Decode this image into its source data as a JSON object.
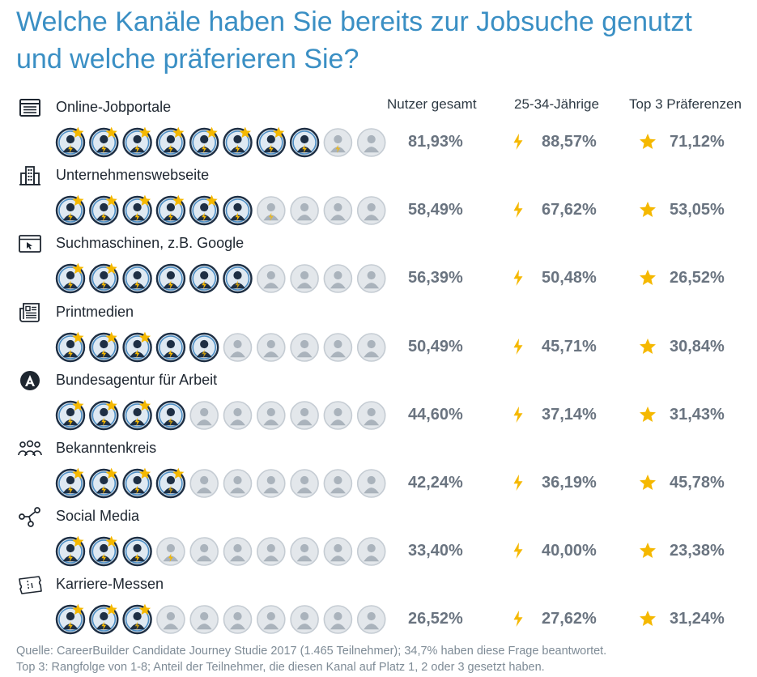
{
  "title": "Welche Kanäle haben Sie bereits zur Jobsuche genutzt und welche präferieren Sie?",
  "columns": {
    "total": "Nutzer gesamt",
    "age": "25-34-Jährige",
    "top3": "Top 3 Präferenzen"
  },
  "colors": {
    "title": "#3a8fc4",
    "active_person": "#1e2f44",
    "active_ring": "#4d8ec4",
    "inactive_person": "#aab3bc",
    "inactive_fill": "#e3e7eb",
    "bolt": "#f5b800",
    "star": "#f5b800",
    "value_text": "#6a7480"
  },
  "chart_data": {
    "type": "table",
    "title": "Welche Kanäle haben Sie bereits zur Jobsuche genutzt und welche präferieren Sie?",
    "icons_per_row": 10,
    "rows": [
      {
        "channel": "Online-Jobportale",
        "icon": "browser-window-icon",
        "total": "81,93%",
        "age_25_34": "88,57%",
        "top3": "71,12%",
        "total_value": 81.93,
        "age_value": 88.57,
        "top3_value": 71.12
      },
      {
        "channel": "Unternehmenswebseite",
        "icon": "office-building-icon",
        "total": "58,49%",
        "age_25_34": "67,62%",
        "top3": "53,05%",
        "total_value": 58.49,
        "age_value": 67.62,
        "top3_value": 53.05
      },
      {
        "channel": "Suchmaschinen, z.B. Google",
        "icon": "cursor-window-icon",
        "total": "56,39%",
        "age_25_34": "50,48%",
        "top3": "26,52%",
        "total_value": 56.39,
        "age_value": 50.48,
        "top3_value": 26.52
      },
      {
        "channel": "Printmedien",
        "icon": "newspaper-icon",
        "total": "50,49%",
        "age_25_34": "45,71%",
        "top3": "30,84%",
        "total_value": 50.49,
        "age_value": 45.71,
        "top3_value": 30.84
      },
      {
        "channel": "Bundesagentur für Arbeit",
        "icon": "employment-agency-logo-icon",
        "total": "44,60%",
        "age_25_34": "37,14%",
        "top3": "31,43%",
        "total_value": 44.6,
        "age_value": 37.14,
        "top3_value": 31.43
      },
      {
        "channel": "Bekanntenkreis",
        "icon": "people-group-icon",
        "total": "42,24%",
        "age_25_34": "36,19%",
        "top3": "45,78%",
        "total_value": 42.24,
        "age_value": 36.19,
        "top3_value": 45.78
      },
      {
        "channel": "Social Media",
        "icon": "network-share-icon",
        "total": "33,40%",
        "age_25_34": "40,00%",
        "top3": "23,38%",
        "total_value": 33.4,
        "age_value": 40.0,
        "top3_value": 23.38
      },
      {
        "channel": "Karriere-Messen",
        "icon": "ticket-icon",
        "total": "26,52%",
        "age_25_34": "27,62%",
        "top3": "31,24%",
        "total_value": 26.52,
        "age_value": 27.62,
        "top3_value": 31.24
      }
    ]
  },
  "footer": {
    "line1": "Quelle: CareerBuilder Candidate Journey Studie 2017 (1.465 Teilnehmer); 34,7% haben diese Frage beantwortet.",
    "line2": "Top 3: Rangfolge von 1-8; Anteil der Teilnehmer, die diesen Kanal auf Platz 1, 2 oder 3 gesetzt haben."
  }
}
